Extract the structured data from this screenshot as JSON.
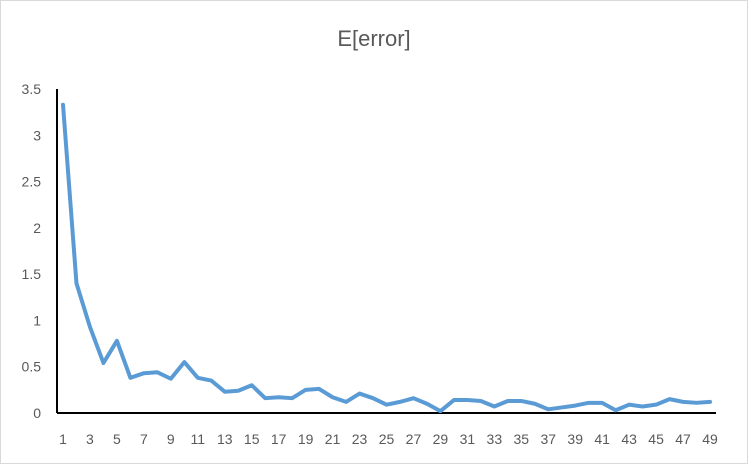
{
  "chart_data": {
    "type": "line",
    "title": "E[error]",
    "xlabel": "",
    "ylabel": "",
    "ylim": [
      0,
      3.5
    ],
    "y_ticks": [
      "0",
      "0.5",
      "1",
      "1.5",
      "2",
      "2.5",
      "3",
      "3.5"
    ],
    "y_tick_values": [
      0,
      0.5,
      1,
      1.5,
      2,
      2.5,
      3,
      3.5
    ],
    "x_tick_labels": [
      "1",
      "3",
      "5",
      "7",
      "9",
      "11",
      "13",
      "15",
      "17",
      "19",
      "21",
      "23",
      "25",
      "27",
      "29",
      "31",
      "33",
      "35",
      "37",
      "39",
      "41",
      "43",
      "45",
      "47",
      "49"
    ],
    "grid": false,
    "legend": "none",
    "x": [
      1,
      2,
      3,
      4,
      5,
      6,
      7,
      8,
      9,
      10,
      11,
      12,
      13,
      14,
      15,
      16,
      17,
      18,
      19,
      20,
      21,
      22,
      23,
      24,
      25,
      26,
      27,
      28,
      29,
      30,
      31,
      32,
      33,
      34,
      35,
      36,
      37,
      38,
      39,
      40,
      41,
      42,
      43,
      44,
      45,
      46,
      47,
      48,
      49
    ],
    "series": [
      {
        "values": [
          3.33,
          1.4,
          0.93,
          0.54,
          0.78,
          0.38,
          0.43,
          0.44,
          0.37,
          0.55,
          0.38,
          0.35,
          0.23,
          0.24,
          0.3,
          0.16,
          0.17,
          0.16,
          0.25,
          0.26,
          0.17,
          0.12,
          0.21,
          0.16,
          0.09,
          0.12,
          0.16,
          0.1,
          0.02,
          0.14,
          0.14,
          0.13,
          0.07,
          0.13,
          0.13,
          0.1,
          0.04,
          0.06,
          0.08,
          0.11,
          0.11,
          0.03,
          0.09,
          0.07,
          0.09,
          0.15,
          0.12,
          0.11,
          0.12
        ],
        "color": "#5b9bd5"
      }
    ],
    "axis_color": "#000000"
  }
}
